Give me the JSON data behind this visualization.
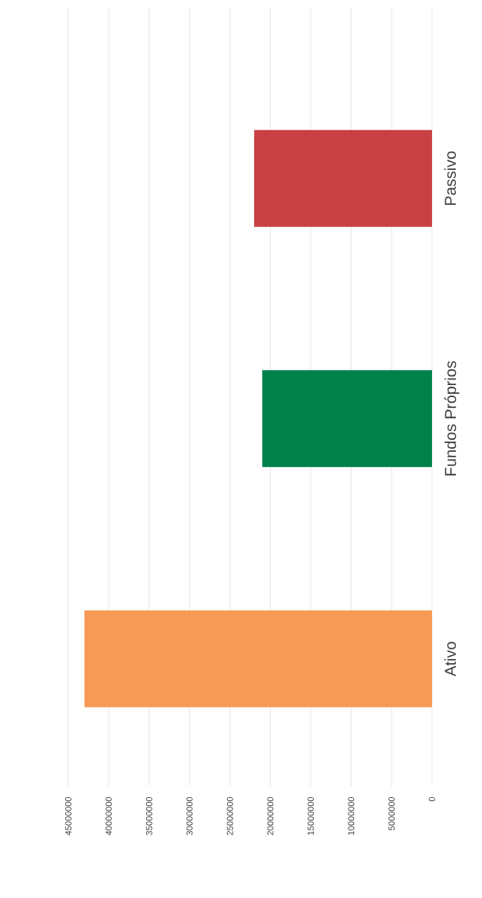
{
  "chart_data": {
    "type": "bar",
    "orientation": "horizontal",
    "categories": [
      "Passivo",
      "Fundos Próprios",
      "Ativo"
    ],
    "values": [
      22000000,
      21000000,
      43000000
    ],
    "colors": [
      "#c94042",
      "#00804a",
      "#f79a56"
    ],
    "xlim": [
      45000000,
      0
    ],
    "xticks": [
      0,
      5000000,
      10000000,
      15000000,
      20000000,
      25000000,
      30000000,
      35000000,
      40000000,
      45000000
    ],
    "grid": "x"
  }
}
